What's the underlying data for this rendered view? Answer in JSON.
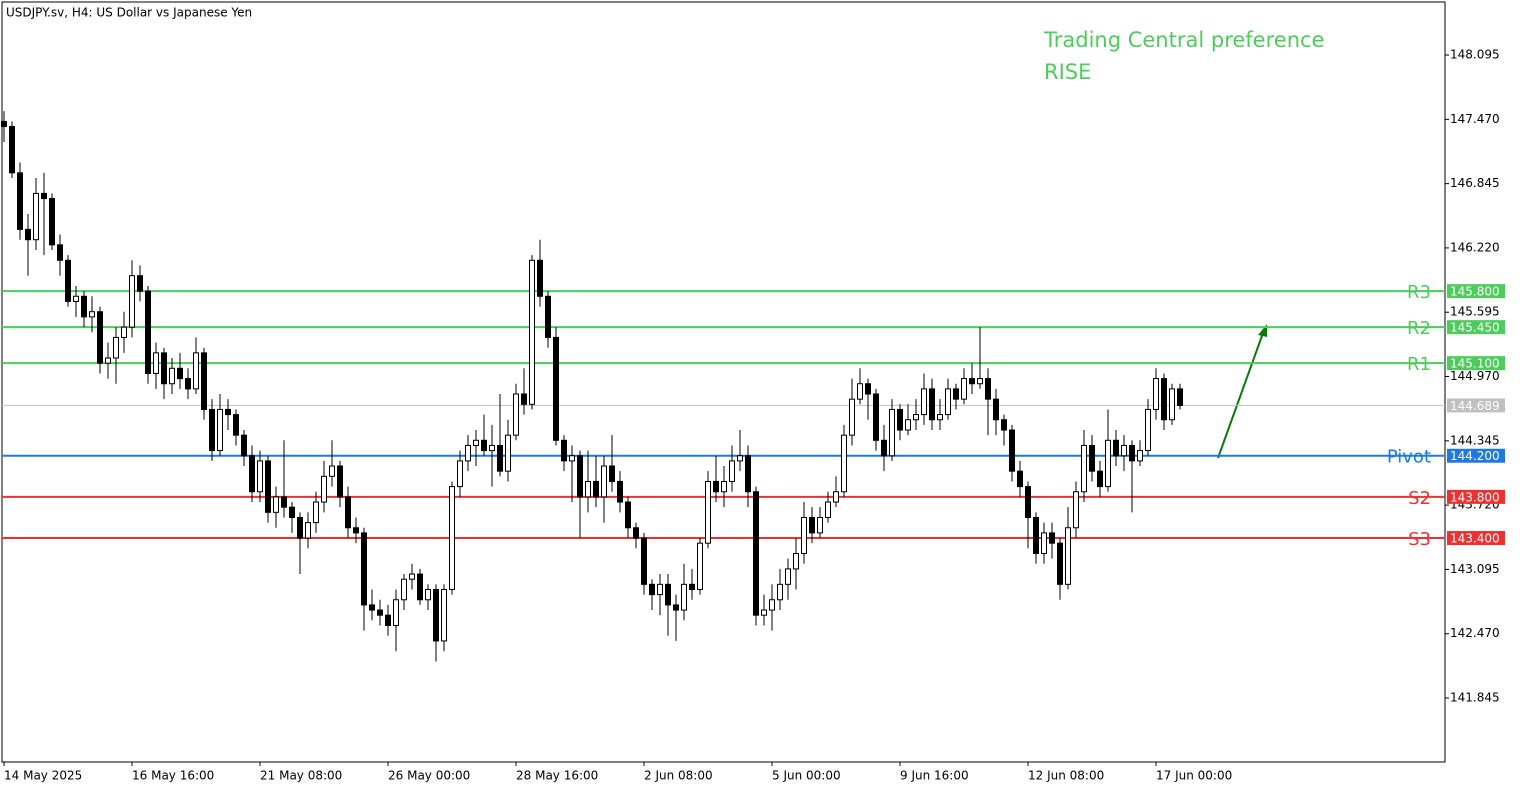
{
  "chart_data": {
    "type": "candlestick",
    "title": "USDJPY.sv, H4:  US Dollar vs Japanese Yen",
    "annotations": [
      "Trading Central preference",
      "RISE"
    ],
    "annotation_color": "#4ccc5a",
    "up_color": "#ffffff",
    "down_color": "#000000",
    "ylim": [
      141.223,
      148.63
    ],
    "yticks": [
      148.095,
      {
        "value": 147.47,
        "label": "147.470"
      },
      146.845,
      {
        "value": 146.22,
        "label": "146.220"
      },
      145.595,
      {
        "value": 144.97,
        "label": "144.970"
      },
      144.345,
      {
        "value": 143.72,
        "label": "143.720"
      },
      143.095,
      {
        "value": 142.47,
        "label": "142.470"
      },
      141.845
    ],
    "categories": [
      "14 May 2025",
      null,
      null,
      null,
      null,
      null,
      null,
      null,
      null,
      null,
      null,
      null,
      null,
      null,
      null,
      null,
      "16 May 16:00",
      null,
      null,
      null,
      null,
      null,
      null,
      null,
      null,
      null,
      null,
      null,
      null,
      null,
      null,
      null,
      "21 May 08:00",
      null,
      null,
      null,
      null,
      null,
      null,
      null,
      null,
      null,
      null,
      null,
      null,
      null,
      null,
      null,
      "26 May 00:00",
      null,
      null,
      null,
      null,
      null,
      null,
      null,
      null,
      null,
      null,
      null,
      null,
      null,
      null,
      null,
      "28 May 16:00",
      null,
      null,
      null,
      null,
      null,
      null,
      null,
      null,
      null,
      null,
      null,
      null,
      null,
      null,
      null,
      "2 Jun 08:00",
      null,
      null,
      null,
      null,
      null,
      null,
      null,
      null,
      null,
      null,
      null,
      null,
      null,
      null,
      null,
      "5 Jun 00:00",
      null,
      null,
      null,
      null,
      null,
      null,
      null,
      null,
      null,
      null,
      null,
      null,
      null,
      null,
      null,
      "9 Jun 16:00",
      null,
      null,
      null,
      null,
      null,
      null,
      null,
      null,
      null,
      null,
      null,
      null,
      null,
      null,
      null,
      "12 Jun 08:00",
      null,
      null,
      null,
      null,
      null,
      null,
      null,
      null,
      null,
      null,
      null,
      null,
      null,
      null,
      null,
      "17 Jun 00:00",
      null,
      null,
      null
    ],
    "candles": [
      [
        147.45,
        147.55,
        147.25,
        147.4
      ],
      [
        147.4,
        147.45,
        146.9,
        146.95
      ],
      [
        146.95,
        147.05,
        146.3,
        146.4
      ],
      [
        146.4,
        146.55,
        145.95,
        146.3
      ],
      [
        146.3,
        146.9,
        146.2,
        146.75
      ],
      [
        146.75,
        146.95,
        146.15,
        146.7
      ],
      [
        146.7,
        146.75,
        146.2,
        146.25
      ],
      [
        146.25,
        146.35,
        145.95,
        146.1
      ],
      [
        146.1,
        146.15,
        145.65,
        145.7
      ],
      [
        145.7,
        145.85,
        145.55,
        145.75
      ],
      [
        145.75,
        145.8,
        145.45,
        145.55
      ],
      [
        145.55,
        145.75,
        145.4,
        145.6
      ],
      [
        145.6,
        145.65,
        145.0,
        145.1
      ],
      [
        145.1,
        145.3,
        144.95,
        145.15
      ],
      [
        145.15,
        145.45,
        144.9,
        145.35
      ],
      [
        145.35,
        145.6,
        145.2,
        145.45
      ],
      [
        145.45,
        146.1,
        145.35,
        145.95
      ],
      [
        145.95,
        146.05,
        145.7,
        145.8
      ],
      [
        145.8,
        145.85,
        144.9,
        145.0
      ],
      [
        145.0,
        145.3,
        144.85,
        145.2
      ],
      [
        145.2,
        145.25,
        144.75,
        144.9
      ],
      [
        144.9,
        145.15,
        144.8,
        145.05
      ],
      [
        145.05,
        145.2,
        144.85,
        144.95
      ],
      [
        144.95,
        145.05,
        144.75,
        144.85
      ],
      [
        144.85,
        145.35,
        144.8,
        145.2
      ],
      [
        145.2,
        145.25,
        144.55,
        144.65
      ],
      [
        144.65,
        144.75,
        144.15,
        144.25
      ],
      [
        144.25,
        144.8,
        144.2,
        144.65
      ],
      [
        144.65,
        144.75,
        144.45,
        144.6
      ],
      [
        144.6,
        144.65,
        144.3,
        144.4
      ],
      [
        144.4,
        144.45,
        144.1,
        144.2
      ],
      [
        144.2,
        144.3,
        143.75,
        143.85
      ],
      [
        143.85,
        144.25,
        143.75,
        144.15
      ],
      [
        144.15,
        144.2,
        143.55,
        143.65
      ],
      [
        143.65,
        143.9,
        143.5,
        143.8
      ],
      [
        143.8,
        144.35,
        143.6,
        143.7
      ],
      [
        143.7,
        143.75,
        143.45,
        143.6
      ],
      [
        143.6,
        143.65,
        143.05,
        143.4
      ],
      [
        143.4,
        143.65,
        143.3,
        143.55
      ],
      [
        143.55,
        143.85,
        143.45,
        143.75
      ],
      [
        143.75,
        144.15,
        143.65,
        144.0
      ],
      [
        144.0,
        144.35,
        143.9,
        144.1
      ],
      [
        144.1,
        144.15,
        143.7,
        143.8
      ],
      [
        143.8,
        143.9,
        143.4,
        143.5
      ],
      [
        143.5,
        143.6,
        143.35,
        143.45
      ],
      [
        143.45,
        143.5,
        142.5,
        142.75
      ],
      [
        142.75,
        142.9,
        142.6,
        142.7
      ],
      [
        142.7,
        142.8,
        142.55,
        142.65
      ],
      [
        142.65,
        142.75,
        142.45,
        142.55
      ],
      [
        142.55,
        142.9,
        142.3,
        142.8
      ],
      [
        142.8,
        143.05,
        142.7,
        143.0
      ],
      [
        143.0,
        143.15,
        142.9,
        143.05
      ],
      [
        143.05,
        143.1,
        142.75,
        142.8
      ],
      [
        142.8,
        142.95,
        142.7,
        142.9
      ],
      [
        142.9,
        142.95,
        142.2,
        142.4
      ],
      [
        142.4,
        142.95,
        142.3,
        142.9
      ],
      [
        142.9,
        143.95,
        142.85,
        143.9
      ],
      [
        143.9,
        144.25,
        143.8,
        144.15
      ],
      [
        144.15,
        144.4,
        144.05,
        144.3
      ],
      [
        144.3,
        144.45,
        144.1,
        144.35
      ],
      [
        144.35,
        144.6,
        144.2,
        144.25
      ],
      [
        144.25,
        144.5,
        143.9,
        144.3
      ],
      [
        144.3,
        144.8,
        144.0,
        144.05
      ],
      [
        144.05,
        144.55,
        143.95,
        144.4
      ],
      [
        144.4,
        144.9,
        144.35,
        144.8
      ],
      [
        144.8,
        145.05,
        144.6,
        144.7
      ],
      [
        144.7,
        146.15,
        144.65,
        146.1
      ],
      [
        146.1,
        146.3,
        145.65,
        145.75
      ],
      [
        145.75,
        145.8,
        145.25,
        145.35
      ],
      [
        145.35,
        145.45,
        144.3,
        144.35
      ],
      [
        144.35,
        144.4,
        144.05,
        144.15
      ],
      [
        144.15,
        144.3,
        143.75,
        144.2
      ],
      [
        144.2,
        144.25,
        143.4,
        143.8
      ],
      [
        143.8,
        144.25,
        143.65,
        143.95
      ],
      [
        143.95,
        144.2,
        143.7,
        143.8
      ],
      [
        143.8,
        144.2,
        143.55,
        144.1
      ],
      [
        144.1,
        144.4,
        143.85,
        143.95
      ],
      [
        143.95,
        144.05,
        143.65,
        143.75
      ],
      [
        143.75,
        143.8,
        143.4,
        143.5
      ],
      [
        143.5,
        143.55,
        143.3,
        143.4
      ],
      [
        143.4,
        143.45,
        142.85,
        142.95
      ],
      [
        142.95,
        143.0,
        142.7,
        142.85
      ],
      [
        142.85,
        143.05,
        142.65,
        142.95
      ],
      [
        142.95,
        143.05,
        142.45,
        142.75
      ],
      [
        142.75,
        142.85,
        142.4,
        142.7
      ],
      [
        142.7,
        143.15,
        142.6,
        142.95
      ],
      [
        142.95,
        143.1,
        142.8,
        142.9
      ],
      [
        142.9,
        143.4,
        142.85,
        143.35
      ],
      [
        143.35,
        144.05,
        143.3,
        143.95
      ],
      [
        143.95,
        144.2,
        143.75,
        143.85
      ],
      [
        143.85,
        144.1,
        143.7,
        143.95
      ],
      [
        143.95,
        144.3,
        143.85,
        144.15
      ],
      [
        144.15,
        144.45,
        144.05,
        144.2
      ],
      [
        144.2,
        144.3,
        143.7,
        143.85
      ],
      [
        143.85,
        143.9,
        142.55,
        142.65
      ],
      [
        142.65,
        142.85,
        142.55,
        142.7
      ],
      [
        142.7,
        142.95,
        142.5,
        142.8
      ],
      [
        142.8,
        143.1,
        142.7,
        142.95
      ],
      [
        142.95,
        143.2,
        142.8,
        143.1
      ],
      [
        143.1,
        143.4,
        142.9,
        143.25
      ],
      [
        143.25,
        143.75,
        143.15,
        143.6
      ],
      [
        143.6,
        143.7,
        143.35,
        143.45
      ],
      [
        143.45,
        143.7,
        143.4,
        143.6
      ],
      [
        143.6,
        143.85,
        143.55,
        143.75
      ],
      [
        143.75,
        144.0,
        143.7,
        143.85
      ],
      [
        143.85,
        144.5,
        143.8,
        144.4
      ],
      [
        144.4,
        144.95,
        144.3,
        144.75
      ],
      [
        144.75,
        145.05,
        144.7,
        144.9
      ],
      [
        144.9,
        144.95,
        144.55,
        144.8
      ],
      [
        144.8,
        144.85,
        144.25,
        144.35
      ],
      [
        144.35,
        144.5,
        144.05,
        144.2
      ],
      [
        144.2,
        144.75,
        144.15,
        144.65
      ],
      [
        144.65,
        144.7,
        144.35,
        144.45
      ],
      [
        144.45,
        144.7,
        144.4,
        144.55
      ],
      [
        144.55,
        144.75,
        144.45,
        144.6
      ],
      [
        144.6,
        145.0,
        144.5,
        144.85
      ],
      [
        144.85,
        144.95,
        144.45,
        144.55
      ],
      [
        144.55,
        144.75,
        144.45,
        144.6
      ],
      [
        144.6,
        144.95,
        144.55,
        144.85
      ],
      [
        144.85,
        144.9,
        144.65,
        144.75
      ],
      [
        144.75,
        145.05,
        144.7,
        144.95
      ],
      [
        144.95,
        145.1,
        144.8,
        144.9
      ],
      [
        144.9,
        145.45,
        144.85,
        144.95
      ],
      [
        144.95,
        145.05,
        144.4,
        144.75
      ],
      [
        144.75,
        144.85,
        144.4,
        144.55
      ],
      [
        144.55,
        144.6,
        144.3,
        144.45
      ],
      [
        144.45,
        144.5,
        143.95,
        144.05
      ],
      [
        144.05,
        144.15,
        143.8,
        143.9
      ],
      [
        143.9,
        143.95,
        143.3,
        143.6
      ],
      [
        143.6,
        143.65,
        143.15,
        143.25
      ],
      [
        143.25,
        143.55,
        143.15,
        143.45
      ],
      [
        143.45,
        143.55,
        143.2,
        143.35
      ],
      [
        143.35,
        143.4,
        142.8,
        142.95
      ],
      [
        142.95,
        143.7,
        142.9,
        143.5
      ],
      [
        143.5,
        143.95,
        143.4,
        143.85
      ],
      [
        143.85,
        144.45,
        143.75,
        144.3
      ],
      [
        144.3,
        144.4,
        143.95,
        144.05
      ],
      [
        144.05,
        144.15,
        143.8,
        143.9
      ],
      [
        143.9,
        144.65,
        143.85,
        144.35
      ],
      [
        144.35,
        144.45,
        144.1,
        144.2
      ],
      [
        144.2,
        144.4,
        144.05,
        144.3
      ],
      [
        144.3,
        144.35,
        143.65,
        144.15
      ],
      [
        144.15,
        144.35,
        144.1,
        144.25
      ],
      [
        144.25,
        144.75,
        144.2,
        144.65
      ],
      [
        144.65,
        145.05,
        144.55,
        144.95
      ],
      [
        144.95,
        145.0,
        144.45,
        144.55
      ],
      [
        144.55,
        144.9,
        144.5,
        144.85
      ],
      [
        144.85,
        144.9,
        144.65,
        144.689
      ]
    ],
    "levels": [
      {
        "name": "R3",
        "price": 145.8,
        "price_label": "145.800",
        "color": "#4ccc5a"
      },
      {
        "name": "R2",
        "price": 145.45,
        "price_label": "145.450",
        "color": "#4ccc5a"
      },
      {
        "name": "R1",
        "price": 145.1,
        "price_label": "145.100",
        "color": "#4ccc5a"
      },
      {
        "name": "Pivot",
        "price": 144.2,
        "price_label": "144.200",
        "color": "#1e7ae0"
      },
      {
        "name": "S2",
        "price": 143.8,
        "price_label": "143.800",
        "color": "#ee3030"
      },
      {
        "name": "S3",
        "price": 143.4,
        "price_label": "143.400",
        "color": "#ee3030"
      }
    ],
    "current_price": 144.689,
    "current_price_color": "#c0c0c0"
  }
}
